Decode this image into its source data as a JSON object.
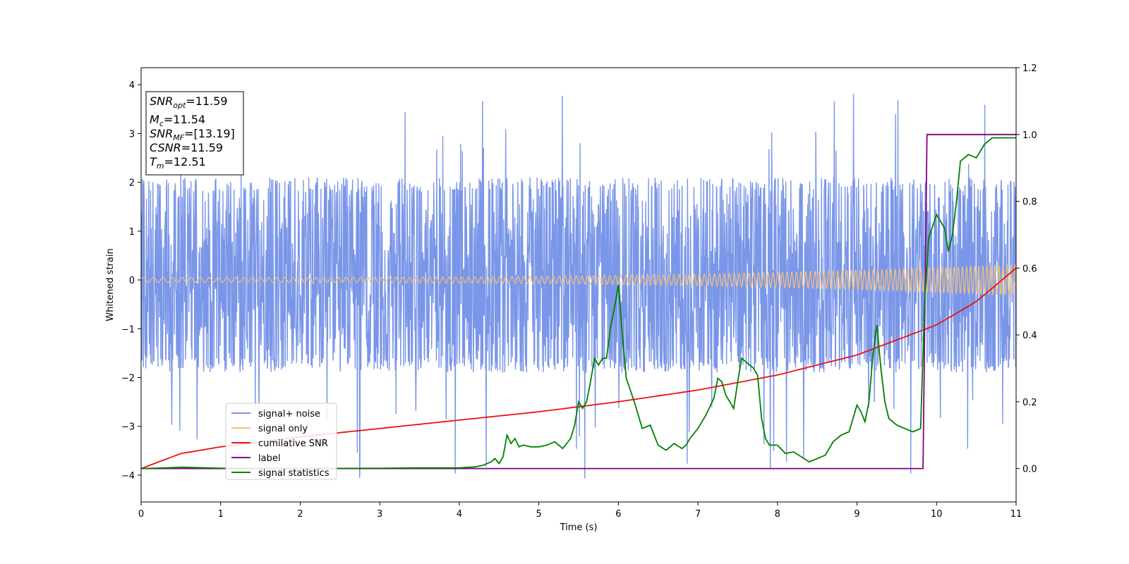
{
  "chart_data": {
    "type": "line",
    "xlabel": "Time (s)",
    "ylabel": "Whitened strain",
    "xlim": [
      0,
      11
    ],
    "ylim": [
      -4.55,
      4.35
    ],
    "y2lim": [
      -0.1,
      1.2
    ],
    "x_ticks": [
      "0",
      "1",
      "2",
      "3",
      "4",
      "5",
      "6",
      "7",
      "8",
      "9",
      "10",
      "11"
    ],
    "y_ticks": [
      "−4",
      "−3",
      "−2",
      "−1",
      "0",
      "1",
      "2",
      "3",
      "4"
    ],
    "y2_ticks": [
      "0.0",
      "0.2",
      "0.4",
      "0.6",
      "0.8",
      "1.0",
      "1.2"
    ],
    "grid": false,
    "legend_placement": "lower-left",
    "annotation": {
      "lines": [
        {
          "base": "SNR",
          "sub": "opt",
          "value": "=11.59"
        },
        {
          "base": "M",
          "sub": "c",
          "value": "=11.54"
        },
        {
          "base": "SNR",
          "sub": "MF",
          "value": "=[13.19]"
        },
        {
          "base": "CSNR",
          "sub": "",
          "value": "=11.59"
        },
        {
          "base": "T",
          "sub": "m",
          "value": "=12.51"
        }
      ]
    },
    "series": [
      {
        "name": "signal+ noise",
        "axis": "left",
        "color": "#7a96e8",
        "kind": "noise",
        "envelope_typical": [
          -1.9,
          2.1
        ],
        "envelope_extreme": [
          -4.1,
          3.95
        ]
      },
      {
        "name": "signal only",
        "axis": "left",
        "color": "#f5c27a",
        "kind": "chirp",
        "amplitude_start": 0.05,
        "amplitude_end": 0.32
      },
      {
        "name": "cumilative SNR",
        "axis": "right",
        "color": "#ee1111",
        "x": [
          0,
          0.5,
          1,
          2,
          3,
          4,
          5,
          6,
          7,
          8,
          9,
          10,
          10.5,
          11
        ],
        "y": [
          0.0,
          0.045,
          0.065,
          0.095,
          0.12,
          0.145,
          0.17,
          0.2,
          0.235,
          0.28,
          0.34,
          0.43,
          0.5,
          0.6
        ]
      },
      {
        "name": "label",
        "axis": "right",
        "color": "#800080",
        "x": [
          0,
          9.83,
          9.88,
          11
        ],
        "y": [
          0,
          0,
          1,
          1
        ]
      },
      {
        "name": "signal statistics",
        "axis": "right",
        "color": "#008000",
        "x": [
          0,
          0.3,
          0.5,
          1,
          2,
          3,
          3.5,
          4,
          4.2,
          4.3,
          4.4,
          4.45,
          4.5,
          4.55,
          4.6,
          4.65,
          4.7,
          4.75,
          4.8,
          4.9,
          5,
          5.1,
          5.2,
          5.3,
          5.4,
          5.45,
          5.5,
          5.55,
          5.6,
          5.65,
          5.7,
          5.75,
          5.8,
          5.85,
          5.9,
          5.95,
          6,
          6.05,
          6.1,
          6.2,
          6.3,
          6.4,
          6.5,
          6.6,
          6.7,
          6.8,
          6.85,
          6.9,
          7,
          7.1,
          7.2,
          7.25,
          7.3,
          7.35,
          7.4,
          7.45,
          7.5,
          7.55,
          7.6,
          7.65,
          7.7,
          7.75,
          7.8,
          7.85,
          7.9,
          8,
          8.1,
          8.2,
          8.3,
          8.4,
          8.5,
          8.6,
          8.7,
          8.8,
          8.9,
          9,
          9.05,
          9.1,
          9.15,
          9.2,
          9.25,
          9.3,
          9.35,
          9.4,
          9.5,
          9.6,
          9.7,
          9.8,
          9.85,
          9.9,
          10,
          10.1,
          10.15,
          10.2,
          10.25,
          10.3,
          10.4,
          10.5,
          10.55,
          10.6,
          10.65,
          10.7,
          10.8,
          10.9,
          11
        ],
        "y": [
          0.0,
          0.002,
          0.004,
          0.001,
          0.0,
          0.001,
          0.002,
          0.002,
          0.005,
          0.01,
          0.02,
          0.03,
          0.015,
          0.035,
          0.1,
          0.075,
          0.09,
          0.065,
          0.07,
          0.065,
          0.065,
          0.07,
          0.08,
          0.06,
          0.09,
          0.13,
          0.2,
          0.18,
          0.2,
          0.26,
          0.33,
          0.31,
          0.33,
          0.33,
          0.42,
          0.48,
          0.55,
          0.4,
          0.27,
          0.2,
          0.12,
          0.13,
          0.07,
          0.055,
          0.075,
          0.06,
          0.07,
          0.09,
          0.12,
          0.16,
          0.21,
          0.27,
          0.26,
          0.22,
          0.2,
          0.18,
          0.26,
          0.33,
          0.32,
          0.31,
          0.3,
          0.28,
          0.15,
          0.09,
          0.07,
          0.07,
          0.045,
          0.05,
          0.035,
          0.02,
          0.03,
          0.04,
          0.08,
          0.1,
          0.11,
          0.19,
          0.17,
          0.14,
          0.2,
          0.34,
          0.43,
          0.3,
          0.2,
          0.15,
          0.13,
          0.12,
          0.11,
          0.12,
          0.5,
          0.69,
          0.76,
          0.72,
          0.65,
          0.7,
          0.8,
          0.92,
          0.94,
          0.93,
          0.95,
          0.97,
          0.98,
          0.99,
          0.99,
          0.99,
          0.99
        ]
      }
    ]
  }
}
